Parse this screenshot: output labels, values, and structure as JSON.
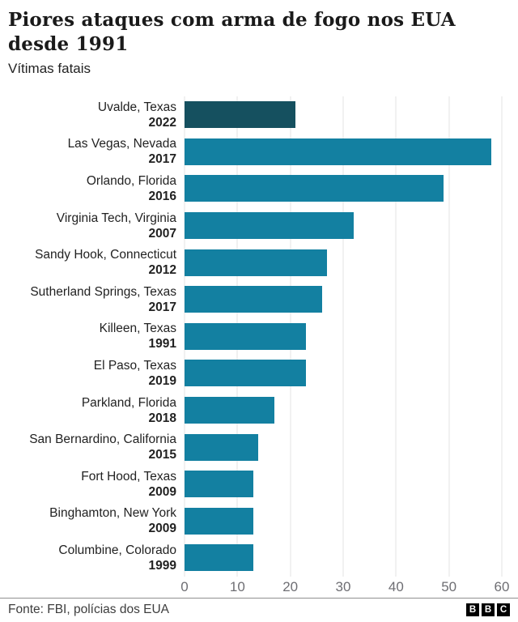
{
  "header": {
    "title": "Piores ataques com arma de fogo nos EUA desde 1991",
    "subtitle": "Vítimas fatais"
  },
  "footer": {
    "source": "Fonte: FBI, polícias dos EUA",
    "logo_letters": [
      "B",
      "B",
      "C"
    ]
  },
  "colors": {
    "bar": "#1380A1",
    "bar_highlight": "#15505F",
    "gridline": "#E3E3E3",
    "tick_text": "#6E6E73",
    "title_text": "#1A1A1A"
  },
  "chart_data": {
    "type": "bar",
    "orientation": "horizontal",
    "title": "Piores ataques com arma de fogo nos EUA desde 1991",
    "subtitle": "Vítimas fatais",
    "xlabel": "",
    "ylabel": "Vítimas fatais",
    "xlim": [
      0,
      60
    ],
    "xticks": [
      0,
      10,
      20,
      30,
      40,
      50,
      60
    ],
    "grid": true,
    "rows": [
      {
        "location": "Uvalde, Texas",
        "year": "2022",
        "value": 21,
        "highlight": true
      },
      {
        "location": "Las Vegas, Nevada",
        "year": "2017",
        "value": 58,
        "highlight": false
      },
      {
        "location": "Orlando, Florida",
        "year": "2016",
        "value": 49,
        "highlight": false
      },
      {
        "location": "Virginia Tech, Virginia",
        "year": "2007",
        "value": 32,
        "highlight": false
      },
      {
        "location": "Sandy Hook, Connecticut",
        "year": "2012",
        "value": 27,
        "highlight": false
      },
      {
        "location": "Sutherland Springs, Texas",
        "year": "2017",
        "value": 26,
        "highlight": false
      },
      {
        "location": "Killeen, Texas",
        "year": "1991",
        "value": 23,
        "highlight": false
      },
      {
        "location": "El Paso, Texas",
        "year": "2019",
        "value": 23,
        "highlight": false
      },
      {
        "location": "Parkland, Florida",
        "year": "2018",
        "value": 17,
        "highlight": false
      },
      {
        "location": "San Bernardino, California",
        "year": "2015",
        "value": 14,
        "highlight": false
      },
      {
        "location": "Fort Hood, Texas",
        "year": "2009",
        "value": 13,
        "highlight": false
      },
      {
        "location": "Binghamton, New York",
        "year": "2009",
        "value": 13,
        "highlight": false
      },
      {
        "location": "Columbine, Colorado",
        "year": "1999",
        "value": 13,
        "highlight": false
      }
    ]
  }
}
